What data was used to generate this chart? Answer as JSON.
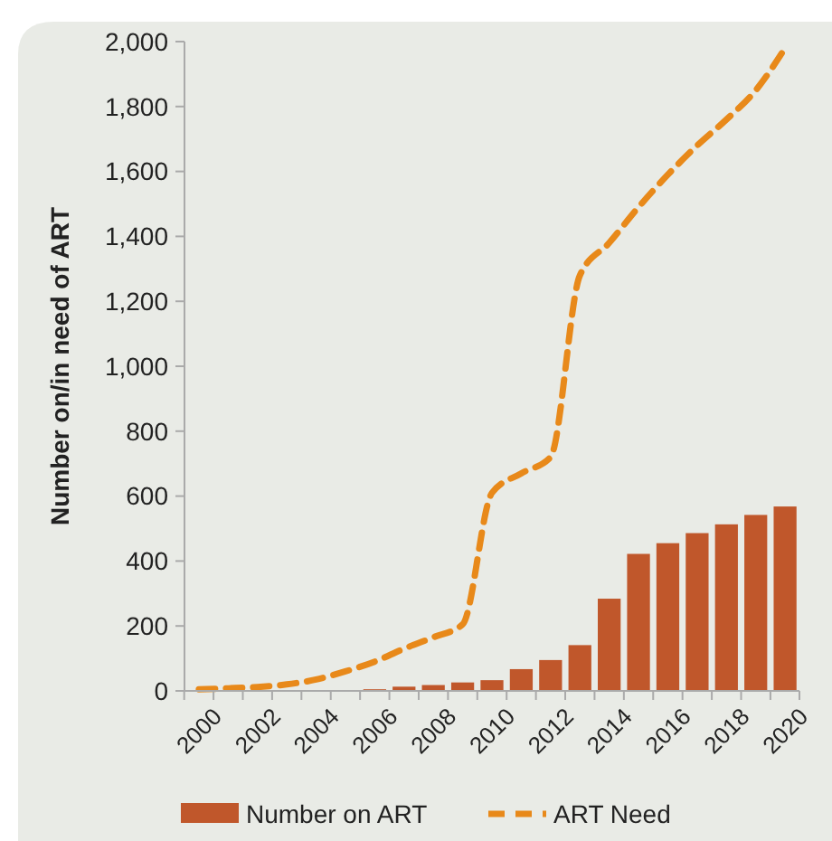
{
  "chart_data": {
    "type": "bar",
    "ylabel": "Number on/in need of ART",
    "categories": [
      "2000",
      null,
      "2002",
      null,
      "2004",
      null,
      "2006",
      null,
      "2008",
      null,
      "2010",
      null,
      "2012",
      null,
      "2014",
      null,
      "2016",
      null,
      "2018",
      null,
      "2020"
    ],
    "series": [
      {
        "name": "Number on ART",
        "color": "#c0572b",
        "values": [
          0,
          0,
          0,
          0,
          0,
          0,
          5,
          13,
          18,
          26,
          33,
          67,
          95,
          141,
          284,
          422,
          455,
          486,
          513,
          542,
          568
        ]
      },
      {
        "name": "ART Need",
        "type": "line",
        "color": "#e8891a",
        "line_style": "dashed",
        "values": [
          5,
          8,
          12,
          20,
          35,
          60,
          90,
          130,
          165,
          205,
          610,
          670,
          720,
          1280,
          1380,
          1490,
          1590,
          1680,
          1760,
          1850,
          1980
        ]
      }
    ],
    "ylim": [
      0,
      2000
    ],
    "yticks": [
      0,
      {
        "value": 200,
        "label": "200"
      },
      {
        "value": 400,
        "label": "400"
      },
      {
        "value": 600,
        "label": "600"
      },
      {
        "value": 800,
        "label": "800"
      },
      {
        "value": 1000,
        "label": "1,000"
      },
      {
        "value": 1200,
        "label": "1,200"
      },
      {
        "value": 1400,
        "label": "1,400"
      },
      {
        "value": 1600,
        "label": "1,600"
      },
      {
        "value": 1800,
        "label": "1,800"
      },
      {
        "value": 2000,
        "label": "2,000"
      }
    ],
    "grid": false,
    "legend": "bottom"
  }
}
